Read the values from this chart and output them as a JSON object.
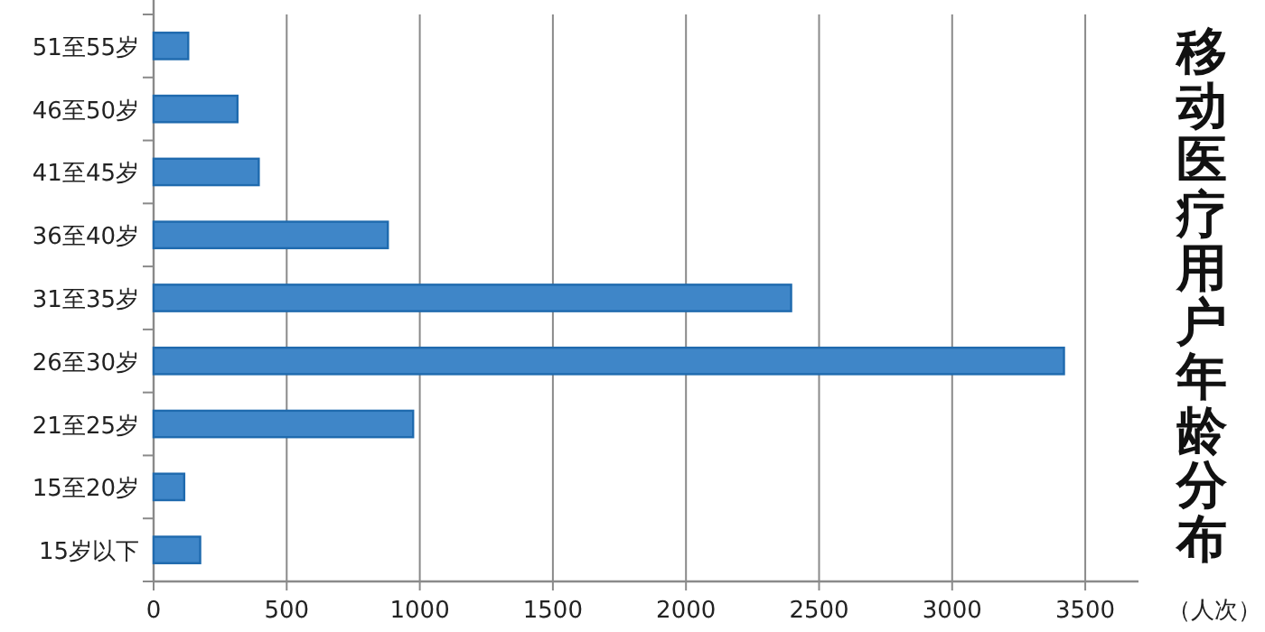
{
  "chart_data": {
    "type": "bar",
    "orientation": "horizontal",
    "title": "移动医疗用户年龄分布",
    "xlabel": "（人次）",
    "categories": [
      "51至55岁",
      "46至50岁",
      "41至45岁",
      "36至40岁",
      "31至35岁",
      "26至30岁",
      "21至25岁",
      "15至20岁",
      "15岁以下"
    ],
    "values": [
      130,
      315,
      395,
      880,
      2395,
      3420,
      975,
      115,
      175
    ],
    "color": "#3f86c8",
    "xlim": [
      0,
      3700
    ],
    "xticks": [
      0,
      500,
      1000,
      1500,
      2000,
      2500,
      3000,
      3500
    ],
    "grid": "x"
  }
}
